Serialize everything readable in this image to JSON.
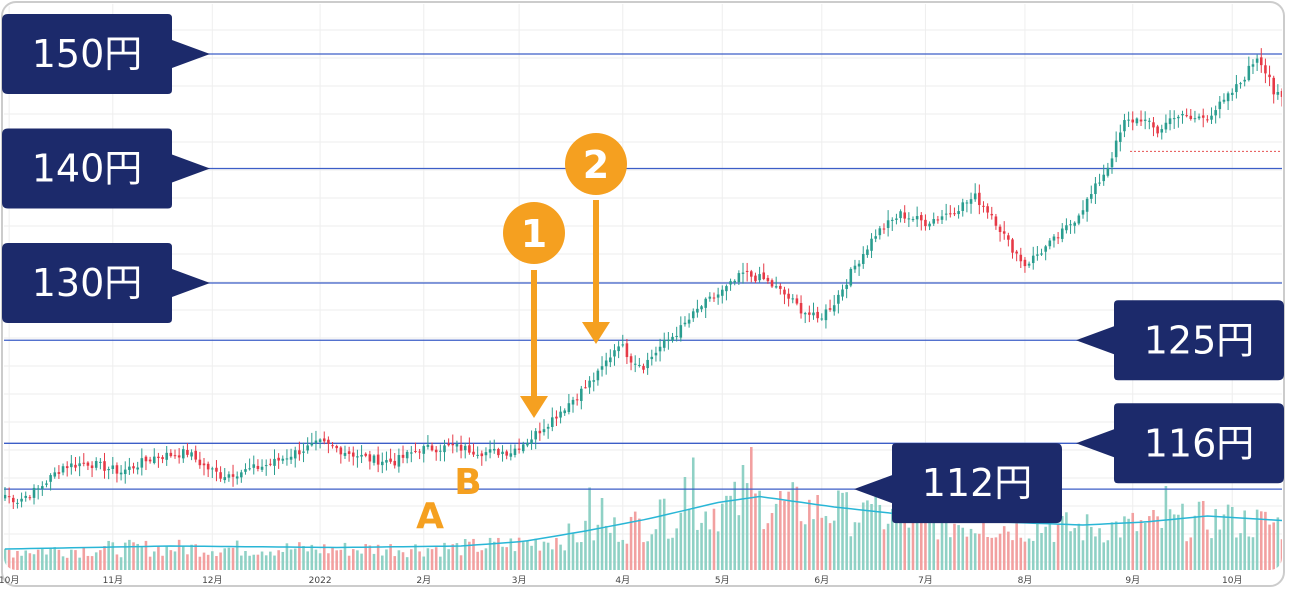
{
  "chart_data": {
    "type": "candlestick",
    "title": "",
    "xlabel": "",
    "ylabel": "",
    "ylim": [
      108,
      153
    ],
    "x_ticks": [
      "10月",
      "11月",
      "12月",
      "2022",
      "2月",
      "3月",
      "4月",
      "5月",
      "6月",
      "7月",
      "8月",
      "9月",
      "10月"
    ],
    "grid": true,
    "price_levels": [
      {
        "value": 150,
        "label": "150円",
        "side": "left"
      },
      {
        "value": 140,
        "label": "140円",
        "side": "left"
      },
      {
        "value": 130,
        "label": "130円",
        "side": "left"
      },
      {
        "value": 125,
        "label": "125円",
        "side": "right"
      },
      {
        "value": 116,
        "label": "116円",
        "side": "right"
      },
      {
        "value": 112,
        "label": "112円",
        "side": "right"
      }
    ],
    "dotted_level": 141.5,
    "price_path": [
      [
        0,
        111.5
      ],
      [
        3,
        111.0
      ],
      [
        8,
        112.0
      ],
      [
        14,
        114.0
      ],
      [
        20,
        114.3
      ],
      [
        28,
        113.5
      ],
      [
        36,
        114.8
      ],
      [
        44,
        115.2
      ],
      [
        48,
        114.0
      ],
      [
        52,
        113.2
      ],
      [
        58,
        113.6
      ],
      [
        64,
        114.2
      ],
      [
        70,
        115.2
      ],
      [
        76,
        116.0
      ],
      [
        82,
        115.3
      ],
      [
        88,
        114.6
      ],
      [
        94,
        114.4
      ],
      [
        100,
        115.5
      ],
      [
        108,
        115.7
      ],
      [
        116,
        115.2
      ],
      [
        122,
        115.3
      ],
      [
        127,
        116.5
      ],
      [
        133,
        118.5
      ],
      [
        138,
        120.2
      ],
      [
        143,
        122.0
      ],
      [
        148,
        124.8
      ],
      [
        151,
        123.4
      ],
      [
        154,
        122.8
      ],
      [
        158,
        124.4
      ],
      [
        163,
        126.0
      ],
      [
        168,
        128.0
      ],
      [
        174,
        129.5
      ],
      [
        178,
        130.8
      ],
      [
        183,
        130.3
      ],
      [
        188,
        129.0
      ],
      [
        192,
        127.7
      ],
      [
        196,
        126.8
      ],
      [
        200,
        128.3
      ],
      [
        205,
        131.5
      ],
      [
        210,
        134.3
      ],
      [
        216,
        136.0
      ],
      [
        222,
        135.3
      ],
      [
        228,
        136.2
      ],
      [
        234,
        137.5
      ],
      [
        238,
        136.0
      ],
      [
        242,
        133.5
      ],
      [
        246,
        131.6
      ],
      [
        250,
        132.8
      ],
      [
        254,
        134.0
      ],
      [
        258,
        135.6
      ],
      [
        262,
        137.7
      ],
      [
        266,
        140.2
      ],
      [
        270,
        144.0
      ],
      [
        274,
        144.4
      ],
      [
        278,
        143.2
      ],
      [
        282,
        144.7
      ],
      [
        286,
        144.3
      ],
      [
        290,
        144.6
      ],
      [
        294,
        145.8
      ],
      [
        298,
        147.5
      ],
      [
        302,
        149.8
      ],
      [
        305,
        148.1
      ],
      [
        306,
        146.6
      ],
      [
        308,
        146.0
      ]
    ],
    "volume_ma_path": [
      [
        0,
        0.14
      ],
      [
        40,
        0.16
      ],
      [
        80,
        0.15
      ],
      [
        110,
        0.16
      ],
      [
        125,
        0.19
      ],
      [
        140,
        0.26
      ],
      [
        155,
        0.34
      ],
      [
        172,
        0.45
      ],
      [
        182,
        0.49
      ],
      [
        200,
        0.42
      ],
      [
        220,
        0.36
      ],
      [
        240,
        0.32
      ],
      [
        260,
        0.3
      ],
      [
        275,
        0.32
      ],
      [
        290,
        0.36
      ],
      [
        308,
        0.33
      ]
    ],
    "volume_high_bars": [
      [
        141,
        0.55
      ],
      [
        144,
        0.48
      ],
      [
        158,
        0.47
      ],
      [
        164,
        0.62
      ],
      [
        166,
        0.75
      ],
      [
        178,
        0.7
      ],
      [
        180,
        0.82
      ],
      [
        201,
        0.53
      ],
      [
        207,
        0.45
      ],
      [
        209,
        0.44
      ],
      [
        236,
        0.44
      ],
      [
        252,
        0.4
      ],
      [
        280,
        0.56
      ],
      [
        296,
        0.42
      ]
    ],
    "annotations": [
      {
        "text": "1",
        "style": "circle"
      },
      {
        "text": "2",
        "style": "circle"
      },
      {
        "text": "A",
        "style": "letter"
      },
      {
        "text": "B",
        "style": "letter"
      }
    ],
    "colors": {
      "up": "#2a9d8f",
      "down": "#e63946",
      "volume_up": "#8fd1c5",
      "volume_down": "#f2a0a0",
      "volume_ma": "#29b6d6",
      "level_line": "#3c5ec7",
      "label_bg": "#1c2a6b",
      "accent": "#f5a020",
      "dotted": "#e65050",
      "grid": "#eeeeee",
      "frame": "#cccccc"
    }
  }
}
